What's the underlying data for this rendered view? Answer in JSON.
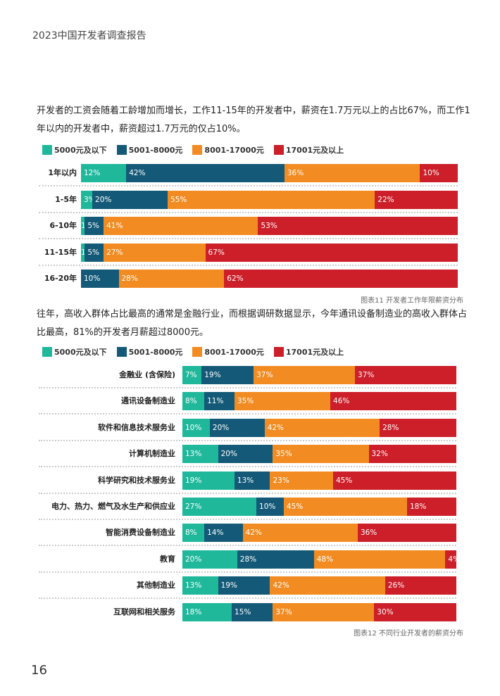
{
  "header": {
    "title": "2023中国开发者调查报告"
  },
  "colors": [
    "#1fb89b",
    "#145a78",
    "#f28c22",
    "#cc1f2a"
  ],
  "section1": {
    "paragraph": "开发者的工资会随着工龄增加而增长，工作11-15年的开发者中，薪资在1.7万元以上的占比67%，而工作1年以内的开发者中，薪资超过1.7万元的仅占10%。",
    "caption": "图表11 开发者工作年限薪资分布"
  },
  "section2": {
    "paragraph": "往年，高收入群体占比最高的通常是金融行业，而根据调研数据显示，今年通讯设备制造业的高收入群体占比最高，81%的开发者月薪超过8000元。",
    "caption": "图表12 不同行业开发者的薪资分布"
  },
  "page_number": "16",
  "chart_data": [
    {
      "type": "bar",
      "stacked": true,
      "orientation": "horizontal",
      "legend": [
        "5000元及以下",
        "5001-8000元",
        "8001-17000元",
        "17001元及以上"
      ],
      "categories": [
        "1年以内",
        "1-5年",
        "6-10年",
        "11-15年",
        "16-20年"
      ],
      "series": [
        {
          "name": "5000元及以下",
          "values": [
            12,
            3,
            1,
            1,
            0
          ]
        },
        {
          "name": "5001-8000元",
          "values": [
            42,
            20,
            5,
            5,
            10
          ]
        },
        {
          "name": "8001-17000元",
          "values": [
            36,
            55,
            41,
            27,
            28
          ]
        },
        {
          "name": "17001元及以上",
          "values": [
            10,
            22,
            53,
            67,
            62
          ]
        }
      ],
      "unit": "%"
    },
    {
      "type": "bar",
      "stacked": true,
      "orientation": "horizontal",
      "legend": [
        "5000元及以下",
        "5001-8000元",
        "8001-17000元",
        "17001元及以上"
      ],
      "categories": [
        "金融业 (含保险)",
        "通讯设备制造业",
        "软件和信息技术服务业",
        "计算机制造业",
        "科学研究和技术服务业",
        "电力、热力、燃气及水生产和供应业",
        "智能消费设备制造业",
        "教育",
        "其他制造业",
        "互联网和相关服务"
      ],
      "series": [
        {
          "name": "5000元及以下",
          "values": [
            7,
            8,
            10,
            13,
            19,
            27,
            8,
            20,
            13,
            18
          ]
        },
        {
          "name": "5001-8000元",
          "values": [
            19,
            11,
            20,
            20,
            13,
            10,
            14,
            28,
            19,
            15
          ]
        },
        {
          "name": "8001-17000元",
          "values": [
            37,
            35,
            42,
            35,
            23,
            45,
            42,
            48,
            42,
            37
          ]
        },
        {
          "name": "17001元及以上",
          "values": [
            37,
            46,
            28,
            32,
            45,
            18,
            36,
            4,
            26,
            30
          ]
        }
      ],
      "unit": "%"
    }
  ]
}
